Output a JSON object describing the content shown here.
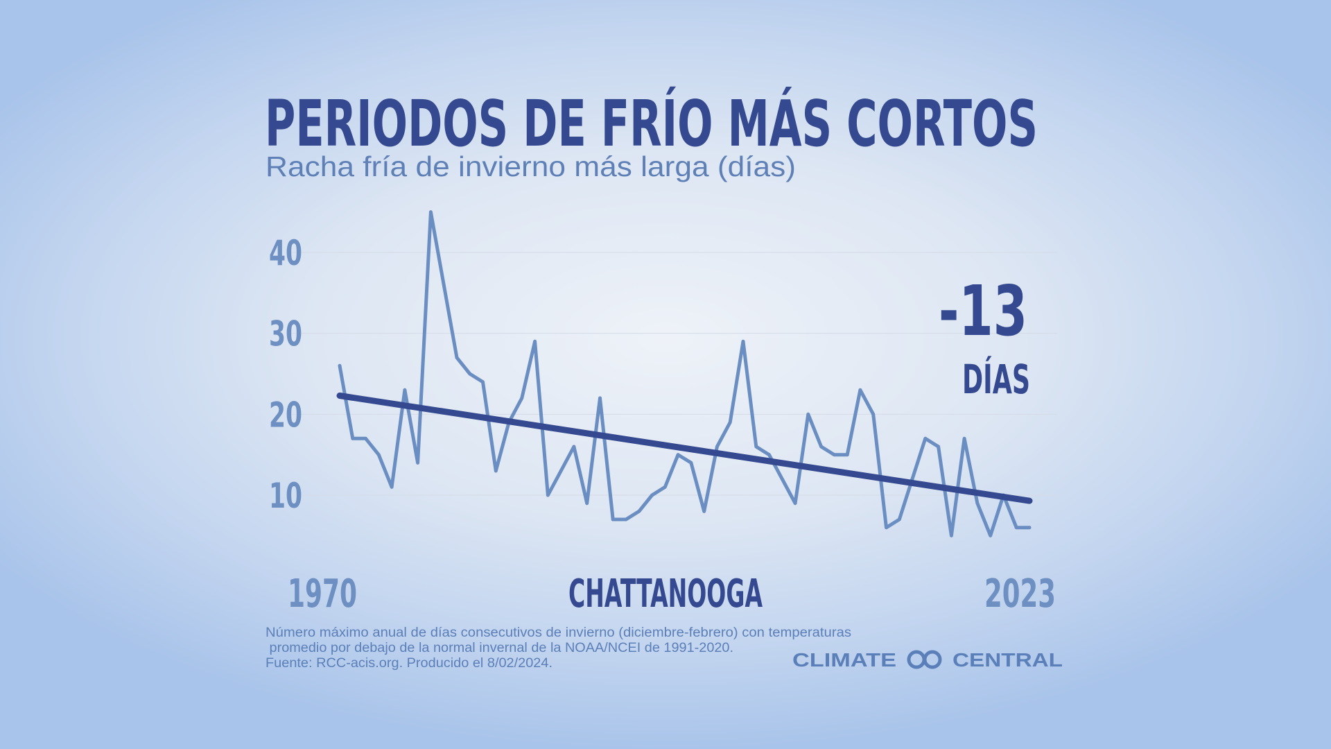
{
  "title": "PERIODOS DE FRÍO MÁS CORTOS",
  "subtitle": "Racha fría de invierno más larga (días)",
  "location": "CHATTANOOGA",
  "start_label": "1970",
  "end_label": "2023",
  "callout": {
    "value": "-13",
    "unit": "DÍAS"
  },
  "footnote": {
    "line1": "Número máximo anual de días consecutivos de invierno (diciembre-febrero) con temperaturas",
    "line2": " promedio por debajo de la normal invernal de la NOAA/NCEI de 1991-2020.",
    "line3": "Fuente: RCC-acis.org. Producido el 8/02/2024."
  },
  "brand": {
    "left": "CLIMATE",
    "right": "CENTRAL"
  },
  "colors": {
    "data_line": "#6a8dc2",
    "trend_line": "#34498f",
    "title": "#34498f",
    "grid": "#d4dbe6"
  },
  "chart_data": {
    "type": "line",
    "title": "PERIODOS DE FRÍO MÁS CORTOS",
    "subtitle": "Racha fría de invierno más larga (días)",
    "xlabel": "",
    "ylabel": "",
    "x": [
      1970,
      1971,
      1972,
      1973,
      1974,
      1975,
      1976,
      1977,
      1978,
      1979,
      1980,
      1981,
      1982,
      1983,
      1984,
      1985,
      1986,
      1987,
      1988,
      1989,
      1990,
      1991,
      1992,
      1993,
      1994,
      1995,
      1996,
      1997,
      1998,
      1999,
      2000,
      2001,
      2002,
      2003,
      2004,
      2005,
      2006,
      2007,
      2008,
      2009,
      2010,
      2011,
      2012,
      2013,
      2014,
      2015,
      2016,
      2017,
      2018,
      2019,
      2020,
      2021,
      2022,
      2023
    ],
    "series": [
      {
        "values": [
          26,
          17,
          17,
          15,
          11,
          23,
          14,
          45,
          36,
          27,
          25,
          24,
          13,
          19,
          22,
          29,
          10,
          13,
          16,
          9,
          22,
          7,
          7,
          8,
          10,
          11,
          15,
          14,
          8,
          16,
          19,
          29,
          16,
          15,
          12,
          9,
          20,
          16,
          15,
          15,
          23,
          20,
          6,
          7,
          12,
          17,
          16,
          5,
          17,
          9,
          5,
          10,
          6,
          6
        ]
      }
    ],
    "trend": {
      "start": [
        1970,
        22.3
      ],
      "end": [
        2023,
        9.3
      ]
    },
    "ylim": [
      0,
      46
    ],
    "xlim": [
      1970,
      2023
    ],
    "yticks": [
      10,
      20,
      30,
      40
    ],
    "grid": true,
    "legend": "none"
  }
}
